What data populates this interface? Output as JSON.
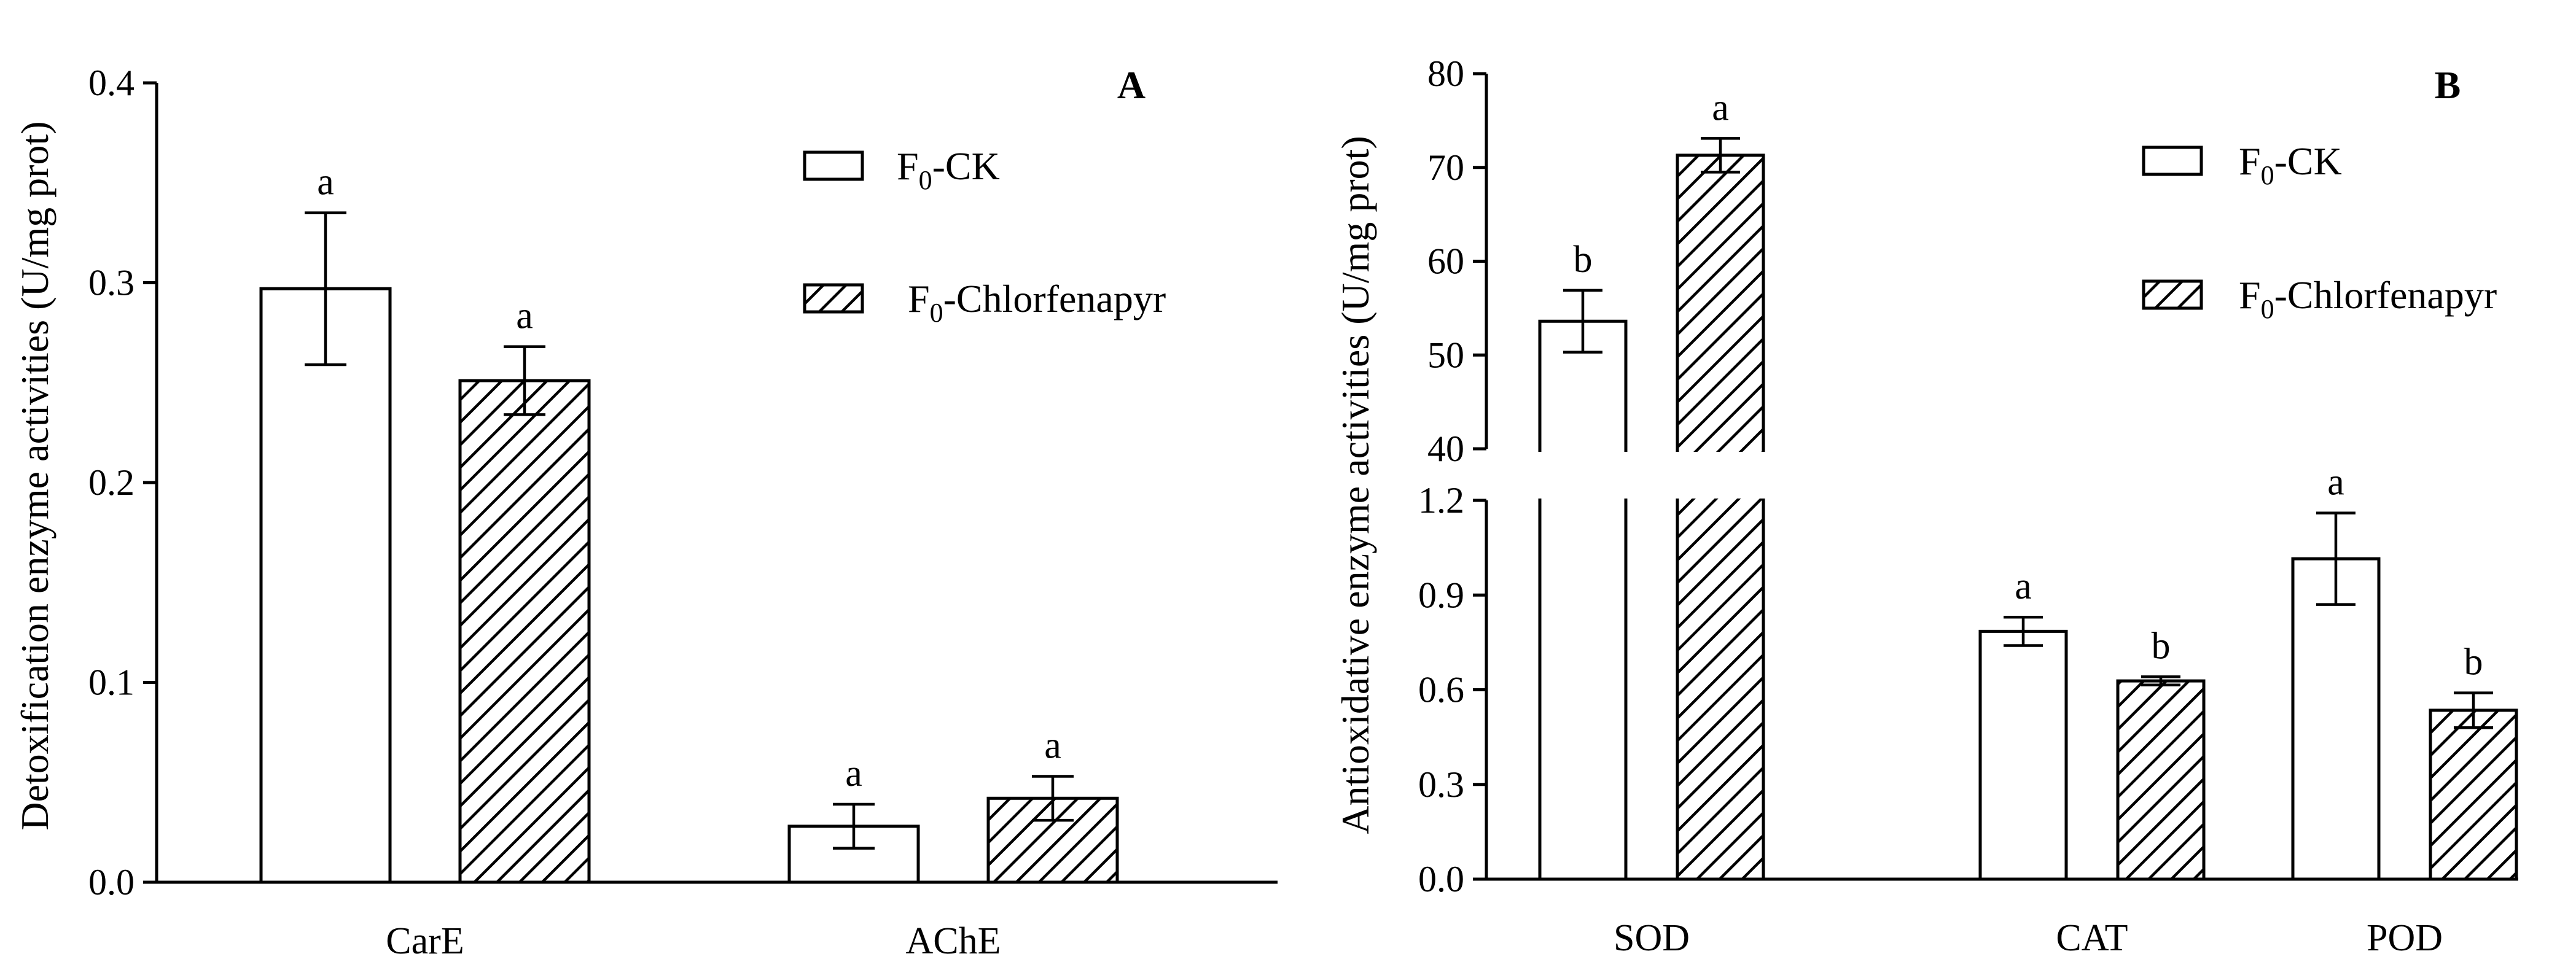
{
  "chart_data": [
    {
      "panel": "A",
      "type": "bar",
      "ylabel": "Detoxification enzyme activities (U/mg prot)",
      "ylim": [
        0,
        0.4
      ],
      "yticks": [
        "0.0",
        "0.1",
        "0.2",
        "0.3",
        "0.4"
      ],
      "categories": [
        "CarE",
        "AChE"
      ],
      "series": [
        {
          "name": "F0-CK",
          "legend_main": "F",
          "legend_sub": "0",
          "legend_rest": "-CK",
          "pattern": "open",
          "values": [
            0.297,
            0.028
          ],
          "errors": [
            0.038,
            0.011
          ],
          "significance": [
            "a",
            "a"
          ]
        },
        {
          "name": "F0-Chlorfenapyr",
          "legend_main": "F",
          "legend_sub": "0",
          "legend_rest": "-Chlorfenapyr",
          "pattern": "hatched",
          "values": [
            0.251,
            0.042
          ],
          "errors": [
            0.017,
            0.011
          ],
          "significance": [
            "a",
            "a"
          ]
        }
      ]
    },
    {
      "panel": "B",
      "type": "bar",
      "ylabel": "Antioxidative enzyme activities (U/mg prot)",
      "broken_axis": {
        "lower": {
          "ylim": [
            0,
            1.2
          ],
          "yticks": [
            "0.0",
            "0.3",
            "0.6",
            "0.9",
            "1.2"
          ]
        },
        "upper": {
          "ylim": [
            40,
            80
          ],
          "yticks": [
            "40",
            "50",
            "60",
            "70",
            "80"
          ]
        }
      },
      "categories": [
        "SOD",
        "CAT",
        "POD"
      ],
      "series": [
        {
          "name": "F0-CK",
          "legend_main": "F",
          "legend_sub": "0",
          "legend_rest": "-CK",
          "pattern": "open",
          "values": [
            53.6,
            0.785,
            1.015
          ],
          "errors": [
            3.3,
            0.045,
            0.145
          ],
          "significance": [
            "b",
            "a",
            "a"
          ]
        },
        {
          "name": "F0-Chlorfenapyr",
          "legend_main": "F",
          "legend_sub": "0",
          "legend_rest": "-Chlorfenapyr",
          "pattern": "hatched",
          "values": [
            71.3,
            0.628,
            0.535
          ],
          "errors": [
            1.8,
            0.013,
            0.055
          ],
          "significance": [
            "a",
            "b",
            "b"
          ]
        }
      ]
    }
  ]
}
